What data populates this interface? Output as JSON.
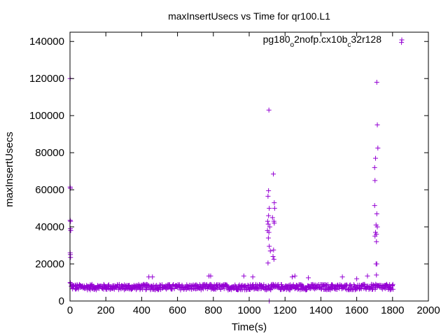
{
  "chart_data": {
    "type": "scatter",
    "title": "maxInsertUsecs vs Time for qr100.L1",
    "xlabel": "Time(s)",
    "ylabel": "maxInsertUsecs",
    "xlim": [
      0,
      2000
    ],
    "ylim": [
      0,
      145000
    ],
    "xticks": [
      "0",
      "200",
      "400",
      "600",
      "800",
      "1000",
      "1200",
      "1400",
      "1600",
      "1800",
      "2000"
    ],
    "yticks": [
      "0",
      "20000",
      "40000",
      "60000",
      "80000",
      "100000",
      "120000",
      "140000"
    ],
    "grid": false,
    "legend_position": "top-right",
    "marker": "plus",
    "color": "#9400d3",
    "series": [
      {
        "name_parts": [
          {
            "text": "pg180",
            "sub": false
          },
          {
            "text": "o",
            "sub": true
          },
          {
            "text": "2nofp.cx10b",
            "sub": false
          },
          {
            "text": "c",
            "sub": true
          },
          {
            "text": "32r128",
            "sub": false
          }
        ],
        "baseline": {
          "x_start": 5,
          "x_end": 1800,
          "step": 5,
          "y_min": 6000,
          "y_max": 9000
        },
        "points": [
          [
            1,
            120000
          ],
          [
            1,
            61500
          ],
          [
            2,
            60800
          ],
          [
            1,
            43500
          ],
          [
            3,
            43000
          ],
          [
            2,
            39000
          ],
          [
            4,
            38000
          ],
          [
            1,
            26000
          ],
          [
            2,
            25000
          ],
          [
            3,
            23500
          ],
          [
            1,
            10000
          ],
          [
            3,
            9500
          ],
          [
            440,
            13000
          ],
          [
            460,
            13000
          ],
          [
            775,
            13500
          ],
          [
            785,
            13500
          ],
          [
            970,
            13500
          ],
          [
            1020,
            13000
          ],
          [
            1110,
            103000
          ],
          [
            1108,
            59500
          ],
          [
            1105,
            56500
          ],
          [
            1112,
            50000
          ],
          [
            1108,
            46000
          ],
          [
            1103,
            43000
          ],
          [
            1106,
            41500
          ],
          [
            1115,
            40000
          ],
          [
            1102,
            38000
          ],
          [
            1110,
            37000
          ],
          [
            1107,
            34000
          ],
          [
            1112,
            29500
          ],
          [
            1118,
            27000
          ],
          [
            1105,
            20500
          ],
          [
            1112,
            0
          ],
          [
            1135,
            68500
          ],
          [
            1140,
            53000
          ],
          [
            1142,
            50000
          ],
          [
            1130,
            45000
          ],
          [
            1138,
            43000
          ],
          [
            1140,
            42000
          ],
          [
            1136,
            27500
          ],
          [
            1133,
            24000
          ],
          [
            1138,
            22500
          ],
          [
            1240,
            13000
          ],
          [
            1255,
            13500
          ],
          [
            1330,
            12500
          ],
          [
            1520,
            13000
          ],
          [
            1600,
            12000
          ],
          [
            1660,
            13500
          ],
          [
            1712,
            118000
          ],
          [
            1715,
            95000
          ],
          [
            1718,
            82500
          ],
          [
            1705,
            77000
          ],
          [
            1700,
            72000
          ],
          [
            1702,
            65000
          ],
          [
            1700,
            51500
          ],
          [
            1712,
            47000
          ],
          [
            1708,
            41000
          ],
          [
            1715,
            40000
          ],
          [
            1705,
            37000
          ],
          [
            1710,
            36000
          ],
          [
            1702,
            35000
          ],
          [
            1710,
            32000
          ],
          [
            1708,
            20000
          ],
          [
            1712,
            20000
          ],
          [
            1710,
            14000
          ],
          [
            1850,
            139500
          ]
        ]
      }
    ]
  }
}
